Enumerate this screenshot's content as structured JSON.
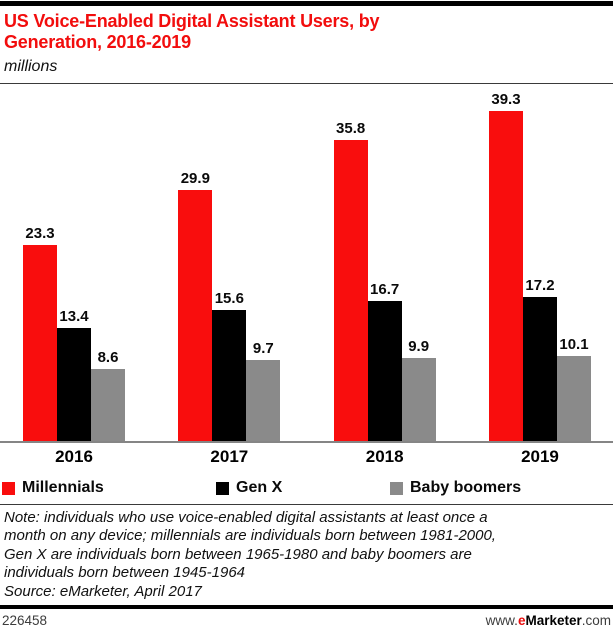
{
  "header": {
    "title": "US Voice-Enabled Digital Assistant Users, by\nGeneration, 2016-2019",
    "subtitle": "millions"
  },
  "chart_data": {
    "type": "bar",
    "title": "US Voice-Enabled Digital Assistant Users, by Generation, 2016-2019",
    "ylabel": "millions",
    "xlabel": "",
    "categories": [
      "2016",
      "2017",
      "2018",
      "2019"
    ],
    "series": [
      {
        "name": "Millennials",
        "color": "#f90d0d",
        "values": [
          23.3,
          29.9,
          35.8,
          39.3
        ]
      },
      {
        "name": "Gen X",
        "color": "#000000",
        "values": [
          13.4,
          15.6,
          16.7,
          17.2
        ]
      },
      {
        "name": "Baby boomers",
        "color": "#8a8a8a",
        "values": [
          8.6,
          9.7,
          9.9,
          10.1
        ]
      }
    ],
    "ylim": [
      0,
      40
    ],
    "grid": false,
    "y_axis_shown": false,
    "value_labels": true,
    "legend_position": "bottom"
  },
  "colors": {
    "accent_red": "#f20d0d",
    "bar_red": "#f90d0d",
    "bar_black": "#000000",
    "bar_gray": "#8a8a8a",
    "axis_gray": "#858585"
  },
  "notes": {
    "note_text": "Note: individuals who use voice-enabled digital assistants at least once a\nmonth on any device; millennials are individuals born between 1981-2000,\nGen X are individuals born between 1965-1980 and baby boomers are\nindividuals born between 1945-1964",
    "source": "Source: eMarketer, April 2017"
  },
  "footer": {
    "chart_id": "226458",
    "website": {
      "prefix": "www.",
      "brand_first": "e",
      "brand_rest": "Marketer",
      "suffix": ".com"
    }
  }
}
